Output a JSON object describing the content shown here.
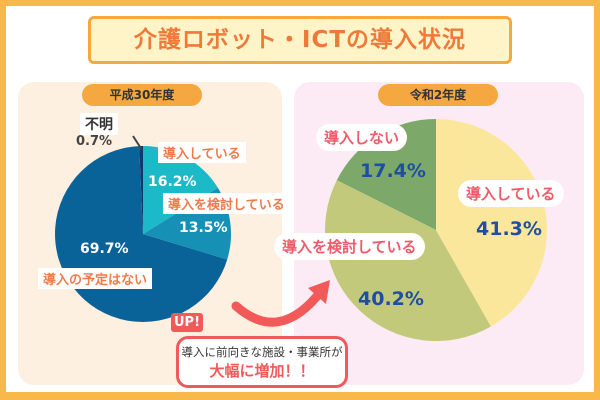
{
  "title": "介護ロボット・ICTの導入状況",
  "chart_data": [
    {
      "type": "pie",
      "title": "平成30年度",
      "categories": [
        "導入している",
        "導入を検討している",
        "導入の予定はない",
        "不明"
      ],
      "values": [
        16.2,
        13.5,
        69.7,
        0.7
      ],
      "labels": [
        "16.2%",
        "13.5%",
        "69.7%",
        "0.7%"
      ],
      "colors": [
        "#1cb9c9",
        "#1690b4",
        "#0a6398",
        "#0a3a6e"
      ]
    },
    {
      "type": "pie",
      "title": "令和2年度",
      "categories": [
        "導入している",
        "導入を検討している",
        "導入しない"
      ],
      "values": [
        41.3,
        40.2,
        17.4
      ],
      "labels": [
        "41.3%",
        "40.2%",
        "17.4%"
      ],
      "colors": [
        "#fbe79c",
        "#c2c97b",
        "#7ca86a"
      ]
    }
  ],
  "callout": {
    "badge": "UP!",
    "line1": "導入に前向きな施設・事業所が",
    "line2": "大幅に増加！！"
  },
  "colors": {
    "border": "#f9b84a",
    "accent": "#f25a5a"
  }
}
